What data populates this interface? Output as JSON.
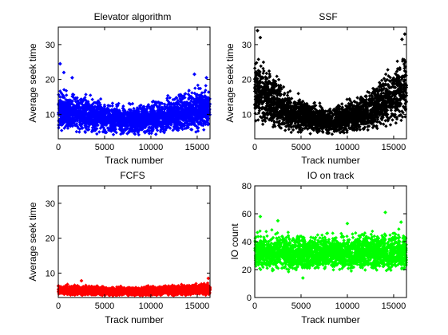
{
  "figure": {
    "background": "#ffffff"
  },
  "chart_data": [
    {
      "type": "scatter",
      "title": "Elevator algorithm",
      "xlabel": "Track number",
      "ylabel": "Average seek time",
      "xlim": [
        0,
        16384
      ],
      "ylim": [
        3,
        35
      ],
      "xticks": [
        0,
        5000,
        10000,
        15000
      ],
      "yticks": [
        10,
        20,
        30
      ],
      "color": "#0000ff",
      "grid": false,
      "marker": "diamond",
      "pattern": "u-shaped band: dense points between about 4 and 14, upper edge rising from about 12 in the middle to about 20 at the ends; outliers up to 24 near track 0",
      "band_profile": [
        {
          "x": 0,
          "low": 5,
          "high": 18.5
        },
        {
          "x": 4000,
          "low": 4,
          "high": 15.5
        },
        {
          "x": 8000,
          "low": 3.5,
          "high": 13.5
        },
        {
          "x": 12000,
          "low": 4,
          "high": 16
        },
        {
          "x": 16384,
          "low": 5,
          "high": 20
        }
      ],
      "points": [
        {
          "x": 200,
          "y": 24.5
        },
        {
          "x": 600,
          "y": 22
        },
        {
          "x": 1500,
          "y": 20.5
        },
        {
          "x": 14700,
          "y": 21.5
        },
        {
          "x": 16000,
          "y": 20.5
        }
      ]
    },
    {
      "type": "scatter",
      "title": "SSF",
      "xlabel": "Track number",
      "ylabel": "Average seek time",
      "xlim": [
        0,
        16384
      ],
      "ylim": [
        3,
        35
      ],
      "xticks": [
        0,
        5000,
        10000,
        15000
      ],
      "yticks": [
        10,
        20,
        30
      ],
      "color": "#000000",
      "grid": false,
      "marker": "diamond",
      "pattern": "deep u-shaped band: dense between about 5 and 13 in the middle, rising to about 30 at both ends; outliers up to 34",
      "band_profile": [
        {
          "x": 0,
          "low": 6,
          "high": 31
        },
        {
          "x": 4000,
          "low": 4.5,
          "high": 17
        },
        {
          "x": 8000,
          "low": 4,
          "high": 13
        },
        {
          "x": 12000,
          "low": 4.5,
          "high": 17.5
        },
        {
          "x": 16384,
          "low": 6,
          "high": 31
        }
      ],
      "points": [
        {
          "x": 300,
          "y": 34
        },
        {
          "x": 600,
          "y": 32
        },
        {
          "x": 16200,
          "y": 33
        },
        {
          "x": 15900,
          "y": 31.5
        }
      ]
    },
    {
      "type": "scatter",
      "title": "FCFS",
      "xlabel": "Track number",
      "ylabel": "Average seek time",
      "xlim": [
        0,
        16384
      ],
      "ylim": [
        3,
        35
      ],
      "xticks": [
        0,
        5000,
        10000,
        15000
      ],
      "yticks": [
        10,
        20,
        30
      ],
      "color": "#ff0000",
      "grid": false,
      "marker": "diamond",
      "pattern": "flat band between about 3.5 and 7 across all tracks, slightly higher near the ends",
      "band_profile": [
        {
          "x": 0,
          "low": 3.5,
          "high": 7
        },
        {
          "x": 8000,
          "low": 3.3,
          "high": 6.3
        },
        {
          "x": 16384,
          "low": 3.5,
          "high": 7.5
        }
      ],
      "points": [
        {
          "x": 16200,
          "y": 8.5
        },
        {
          "x": 2500,
          "y": 7.8
        }
      ]
    },
    {
      "type": "scatter",
      "title": "IO on track",
      "xlabel": "Track number",
      "ylabel": "IO count",
      "xlim": [
        0,
        16384
      ],
      "ylim": [
        0,
        80
      ],
      "xticks": [
        0,
        5000,
        10000,
        15000
      ],
      "yticks": [
        0,
        20,
        40,
        60,
        80
      ],
      "color": "#00ff00",
      "grid": false,
      "marker": "diamond",
      "pattern": "flat band between about 18 and 50 across all tracks, dense core 22-45",
      "band_profile": [
        {
          "x": 0,
          "low": 17,
          "high": 50
        },
        {
          "x": 8000,
          "low": 18,
          "high": 48
        },
        {
          "x": 16384,
          "low": 17,
          "high": 50
        }
      ],
      "points": [
        {
          "x": 14100,
          "y": 61
        },
        {
          "x": 600,
          "y": 58
        },
        {
          "x": 2500,
          "y": 55
        },
        {
          "x": 10000,
          "y": 53
        },
        {
          "x": 15800,
          "y": 54
        },
        {
          "x": 5200,
          "y": 14
        }
      ]
    }
  ]
}
